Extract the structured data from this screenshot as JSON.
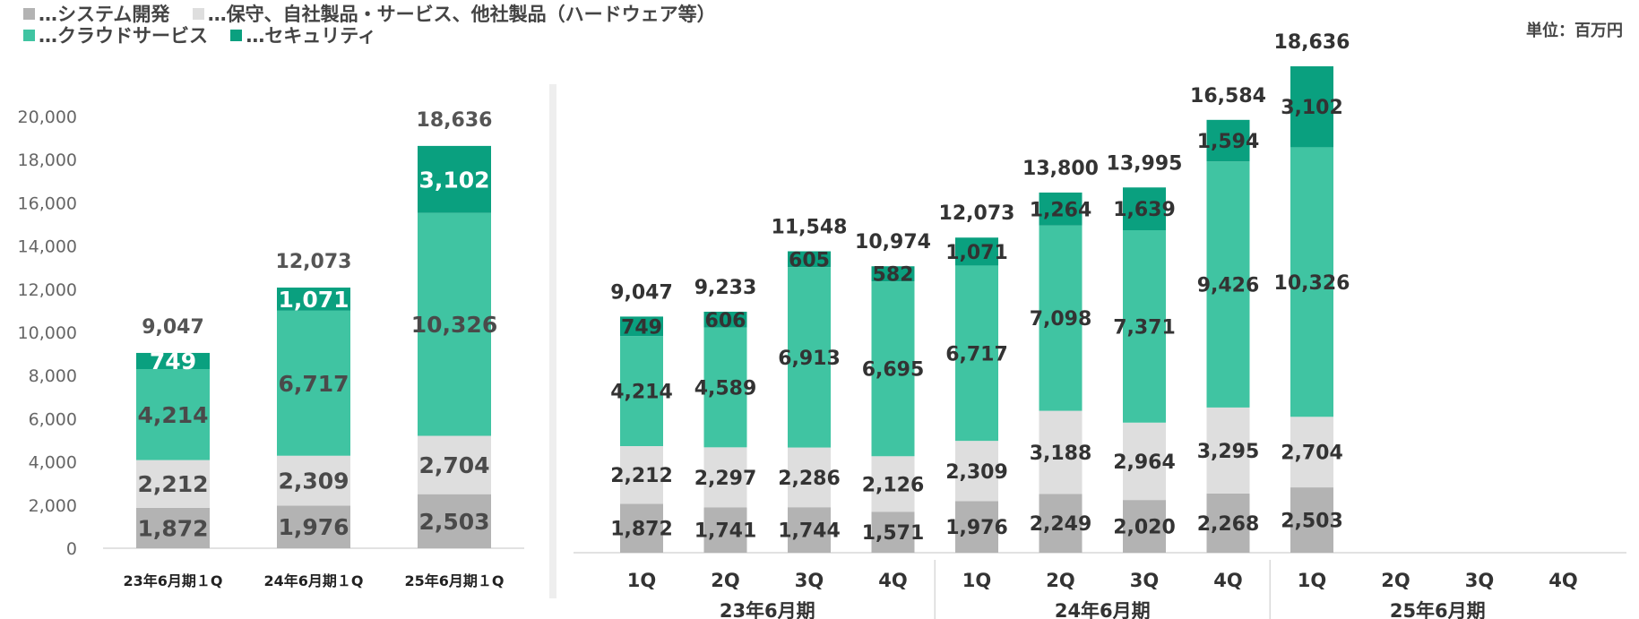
{
  "legend": [
    {
      "label": "…システム開発",
      "color": "#b3b3b3"
    },
    {
      "label": "…保守、自社製品・サービス、他社製品（ハードウェア等）",
      "color": "#dedede"
    },
    {
      "label": "…クラウドサービス",
      "color": "#40c4a2"
    },
    {
      "label": "…セキュリティ",
      "color": "#0aa07f"
    }
  ],
  "unit_label": "単位：百万円",
  "chart_data": [
    {
      "type": "bar",
      "stacked": true,
      "categories": [
        "23年6月期１Q",
        "24年6月期１Q",
        "25年6月期１Q"
      ],
      "series": [
        {
          "name": "…システム開発",
          "values": [
            1872,
            1976,
            2503
          ]
        },
        {
          "name": "…保守、自社製品・サービス、他社製品（ハードウェア等）",
          "values": [
            2212,
            2309,
            2704
          ]
        },
        {
          "name": "…クラウドサービス",
          "values": [
            4214,
            6717,
            10326
          ]
        },
        {
          "name": "…セキュリティ",
          "values": [
            749,
            1071,
            3102
          ]
        }
      ],
      "totals": [
        9047,
        12073,
        18636
      ],
      "ylim": [
        0,
        20000
      ],
      "yticks": [
        0,
        2000,
        4000,
        6000,
        8000,
        10000,
        12000,
        14000,
        16000,
        18000,
        20000
      ],
      "legend_position": "top-left"
    },
    {
      "type": "bar",
      "stacked": true,
      "categories": [
        "1Q",
        "2Q",
        "3Q",
        "4Q",
        "1Q",
        "2Q",
        "3Q",
        "4Q",
        "1Q",
        "2Q",
        "3Q",
        "4Q"
      ],
      "groups": [
        {
          "label": "23年6月期",
          "count": 4
        },
        {
          "label": "24年6月期",
          "count": 4
        },
        {
          "label": "25年6月期",
          "count": 4
        }
      ],
      "series": [
        {
          "name": "…システム開発",
          "values": [
            1872,
            1741,
            1744,
            1571,
            1976,
            2249,
            2020,
            2268,
            2503,
            null,
            null,
            null
          ]
        },
        {
          "name": "…保守、自社製品・サービス、他社製品（ハードウェア等）",
          "values": [
            2212,
            2297,
            2286,
            2126,
            2309,
            3188,
            2964,
            3295,
            2704,
            null,
            null,
            null
          ]
        },
        {
          "name": "…クラウドサービス",
          "values": [
            4214,
            4589,
            6913,
            6695,
            6717,
            7098,
            7371,
            9426,
            10326,
            null,
            null,
            null
          ]
        },
        {
          "name": "…セキュリティ",
          "values": [
            749,
            606,
            605,
            582,
            1071,
            1264,
            1639,
            1594,
            3102,
            null,
            null,
            null
          ]
        }
      ],
      "totals": [
        9047,
        9233,
        11548,
        10974,
        12073,
        13800,
        13995,
        16584,
        18636,
        null,
        null,
        null
      ]
    }
  ]
}
